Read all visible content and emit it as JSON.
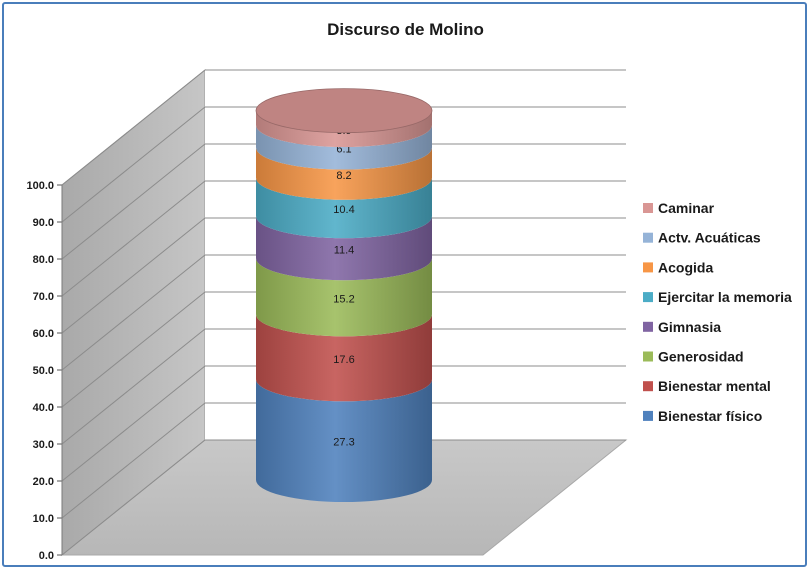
{
  "chart_data": {
    "type": "bar",
    "subtype": "3d-stacked-cylinder",
    "title": "Discurso de Molino",
    "ylim": [
      0,
      100
    ],
    "y_ticks": [
      "0.0",
      "10.0",
      "20.0",
      "30.0",
      "40.0",
      "50.0",
      "60.0",
      "70.0",
      "80.0",
      "90.0",
      "100.0"
    ],
    "grid": true,
    "legend_position": "right",
    "categories": [
      ""
    ],
    "series": [
      {
        "name": "Bienestar físico",
        "values": [
          27.3
        ],
        "label": "27.3",
        "color": "#4f81bd"
      },
      {
        "name": "Bienestar mental",
        "values": [
          17.6
        ],
        "label": "17.6",
        "color": "#c0504d"
      },
      {
        "name": "Generosidad",
        "values": [
          15.2
        ],
        "label": "15.2",
        "color": "#9bbb59"
      },
      {
        "name": "Gimnasia",
        "values": [
          11.4
        ],
        "label": "11.4",
        "color": "#8064a2"
      },
      {
        "name": "Ejercitar la memoria",
        "values": [
          10.4
        ],
        "label": "10.4",
        "color": "#4bacc6"
      },
      {
        "name": "Acogida",
        "values": [
          8.2
        ],
        "label": "8.2",
        "color": "#f79646"
      },
      {
        "name": "Actv. Acuáticas",
        "values": [
          6.1
        ],
        "label": "6.1",
        "color": "#95b3d7"
      },
      {
        "name": "Caminar",
        "values": [
          3.9
        ],
        "label": "3.9",
        "color": "#d99694"
      }
    ]
  }
}
